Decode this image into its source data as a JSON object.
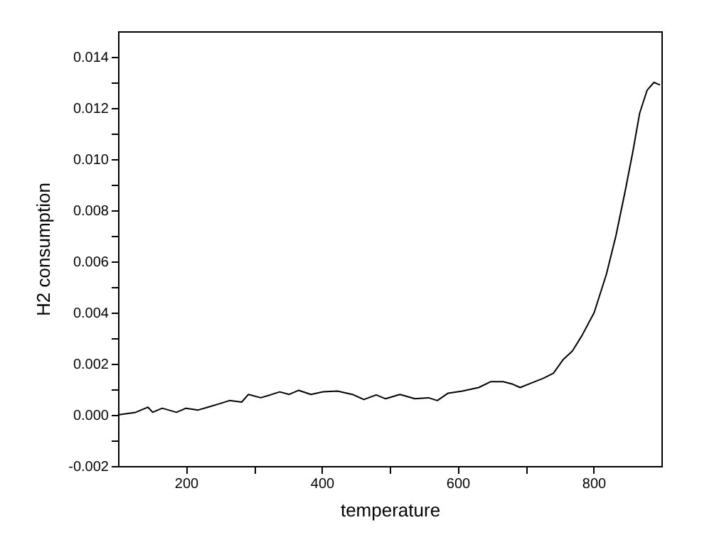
{
  "chart_data": {
    "type": "line",
    "xlabel": "temperature",
    "ylabel": "H2 consumption",
    "xlim": [
      100,
      900
    ],
    "ylim": [
      -0.002,
      0.015
    ],
    "xticks": [
      200,
      {
        "value": 300,
        "label": null
      },
      400,
      {
        "value": 500,
        "label": null
      },
      600,
      {
        "value": 700,
        "label": null
      },
      800
    ],
    "yticks": [
      {
        "value": -0.002,
        "label": "-0.002"
      },
      {
        "value": -0.001,
        "label": null
      },
      {
        "value": 0,
        "label": "0.000"
      },
      {
        "value": 0.001,
        "label": null
      },
      {
        "value": 0.002,
        "label": "0.002"
      },
      {
        "value": 0.003,
        "label": null
      },
      {
        "value": 0.004,
        "label": "0.004"
      },
      {
        "value": 0.005,
        "label": null
      },
      {
        "value": 0.006,
        "label": "0.006"
      },
      {
        "value": 0.007,
        "label": null
      },
      {
        "value": 0.008,
        "label": "0.008"
      },
      {
        "value": 0.009,
        "label": null
      },
      {
        "value": 0.01,
        "label": "0.010"
      },
      {
        "value": 0.011,
        "label": null
      },
      {
        "value": 0.012,
        "label": "0.012"
      },
      {
        "value": 0.013,
        "label": null
      },
      {
        "value": 0.014,
        "label": "0.014"
      }
    ],
    "grid": false,
    "marker": "none",
    "line_style": "solid",
    "series": [
      {
        "color": "#000000",
        "x": [
          100,
          126,
          144,
          151,
          165,
          186,
          200,
          218,
          232,
          250,
          264,
          282,
          292,
          310,
          324,
          338,
          352,
          366,
          384,
          402,
          423,
          445,
          462,
          480,
          494,
          515,
          537,
          557,
          570,
          586,
          607,
          631,
          649,
          667,
          681,
          692,
          706,
          727,
          741,
          755,
          769,
          783,
          801,
          819,
          833,
          847,
          858,
          868,
          879,
          889,
          898
        ],
        "values": [
          0.0,
          0.0001,
          0.0003,
          0.0001,
          0.00026,
          0.0001,
          0.00026,
          0.00019,
          0.0003,
          0.00044,
          0.00056,
          0.0005,
          0.0008,
          0.00067,
          0.00078,
          0.0009,
          0.0008,
          0.00096,
          0.0008,
          0.0009,
          0.00093,
          0.0008,
          0.0006,
          0.00078,
          0.00063,
          0.0008,
          0.00063,
          0.00067,
          0.00056,
          0.00085,
          0.00093,
          0.00107,
          0.0013,
          0.0013,
          0.0012,
          0.00107,
          0.00122,
          0.00144,
          0.00163,
          0.00215,
          0.0025,
          0.0031,
          0.004,
          0.0055,
          0.007,
          0.0088,
          0.0103,
          0.0118,
          0.0127,
          0.013,
          0.0129
        ]
      }
    ]
  }
}
